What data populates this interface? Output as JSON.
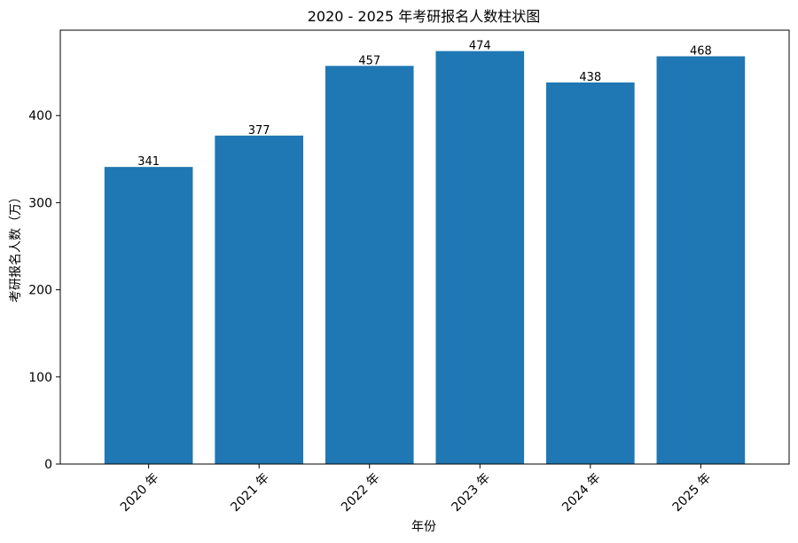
{
  "chart_data": {
    "type": "bar",
    "title": "2020 - 2025 年考研报名人数柱状图",
    "xlabel": "年份",
    "ylabel": "考研报名人数（万）",
    "categories": [
      "2020 年",
      "2021 年",
      "2022 年",
      "2023 年",
      "2024 年",
      "2025 年"
    ],
    "values": [
      341,
      377,
      457,
      474,
      438,
      468
    ],
    "ylim": [
      0,
      498
    ],
    "yticks": [
      0,
      100,
      200,
      300,
      400
    ],
    "grid": false,
    "bar_color": "#1f77b4"
  }
}
